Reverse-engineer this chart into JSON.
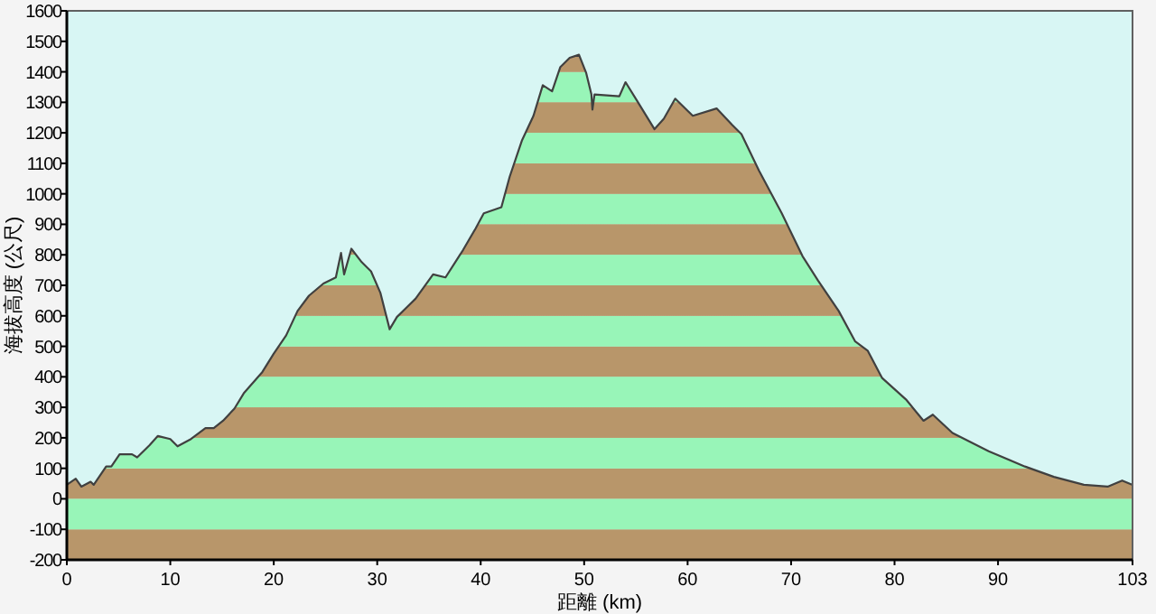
{
  "chart_data": {
    "type": "area",
    "xlabel": "距離 (km)",
    "ylabel": "海拔高度 (公尺)",
    "xlim": [
      0,
      103
    ],
    "xticks": [
      0,
      10,
      20,
      30,
      40,
      50,
      60,
      70,
      80,
      90,
      103
    ],
    "ylim": [
      -200,
      1600
    ],
    "yticks": [
      -200,
      -100,
      0,
      100,
      200,
      300,
      400,
      500,
      600,
      700,
      800,
      900,
      1000,
      1100,
      1200,
      1300,
      1400,
      1500,
      1600
    ],
    "grid": false,
    "series": [
      {
        "color": "#404040",
        "x": [
          0,
          0.86,
          1.4,
          2.3,
          2.6,
          3.8,
          4.3,
          5.1,
          6.3,
          6.8,
          8.0,
          8.8,
          10.0,
          10.7,
          12.0,
          13.4,
          14.2,
          15.1,
          16.2,
          17.1,
          18.9,
          20.0,
          21.2,
          22.3,
          23.4,
          24.8,
          26.0,
          26.5,
          26.8,
          27.5,
          28.5,
          29.4,
          30.3,
          31.2,
          31.9,
          32.8,
          33.7,
          35.4,
          36.6,
          38.3,
          39.5,
          40.3,
          42.0,
          42.8,
          44.0,
          45.1,
          46.0,
          46.9,
          47.7,
          48.6,
          49.5,
          50.2,
          50.7,
          50.8,
          51.0,
          53.4,
          54.0,
          55.1,
          56.8,
          57.7,
          58.8,
          60.5,
          62.8,
          64.3,
          65.2,
          66.9,
          69.1,
          71.1,
          72.6,
          74.6,
          76.2,
          77.4,
          78.8,
          81.1,
          82.8,
          83.7,
          85.6,
          89.1,
          92.6,
          95.4,
          98.3,
          100.6,
          102.0,
          103
        ],
        "values": [
          46,
          66,
          40,
          56,
          46,
          106,
          106,
          146,
          146,
          136,
          176,
          206,
          196,
          172,
          196,
          232,
          232,
          256,
          296,
          346,
          416,
          476,
          536,
          616,
          666,
          706,
          726,
          806,
          736,
          820,
          776,
          746,
          676,
          556,
          596,
          626,
          656,
          736,
          726,
          816,
          886,
          936,
          956,
          1056,
          1176,
          1256,
          1356,
          1336,
          1416,
          1446,
          1456,
          1396,
          1326,
          1276,
          1326,
          1320,
          1366,
          1306,
          1212,
          1246,
          1312,
          1256,
          1280,
          1226,
          1196,
          1076,
          936,
          796,
          716,
          616,
          516,
          486,
          396,
          326,
          256,
          276,
          216,
          156,
          106,
          72,
          46,
          40,
          60,
          46
        ]
      }
    ],
    "bands": [
      {
        "axis": "y",
        "from": -200,
        "to": -100,
        "color": "#b8966a"
      },
      {
        "axis": "y",
        "from": -100,
        "to": 0,
        "color": "#98f5b8"
      },
      {
        "axis": "y",
        "from": 0,
        "to": 100,
        "color": "#b8966a"
      },
      {
        "axis": "y",
        "from": 100,
        "to": 200,
        "color": "#98f5b8"
      },
      {
        "axis": "y",
        "from": 200,
        "to": 300,
        "color": "#b8966a"
      },
      {
        "axis": "y",
        "from": 300,
        "to": 400,
        "color": "#98f5b8"
      },
      {
        "axis": "y",
        "from": 400,
        "to": 500,
        "color": "#b8966a"
      },
      {
        "axis": "y",
        "from": 500,
        "to": 600,
        "color": "#98f5b8"
      },
      {
        "axis": "y",
        "from": 600,
        "to": 700,
        "color": "#b8966a"
      },
      {
        "axis": "y",
        "from": 700,
        "to": 800,
        "color": "#98f5b8"
      },
      {
        "axis": "y",
        "from": 800,
        "to": 900,
        "color": "#b8966a"
      },
      {
        "axis": "y",
        "from": 900,
        "to": 1000,
        "color": "#98f5b8"
      },
      {
        "axis": "y",
        "from": 1000,
        "to": 1100,
        "color": "#b8966a"
      },
      {
        "axis": "y",
        "from": 1100,
        "to": 1200,
        "color": "#98f5b8"
      },
      {
        "axis": "y",
        "from": 1200,
        "to": 1300,
        "color": "#b8966a"
      },
      {
        "axis": "y",
        "from": 1300,
        "to": 1400,
        "color": "#98f5b8"
      },
      {
        "axis": "y",
        "from": 1400,
        "to": 1500,
        "color": "#b8966a"
      }
    ]
  }
}
